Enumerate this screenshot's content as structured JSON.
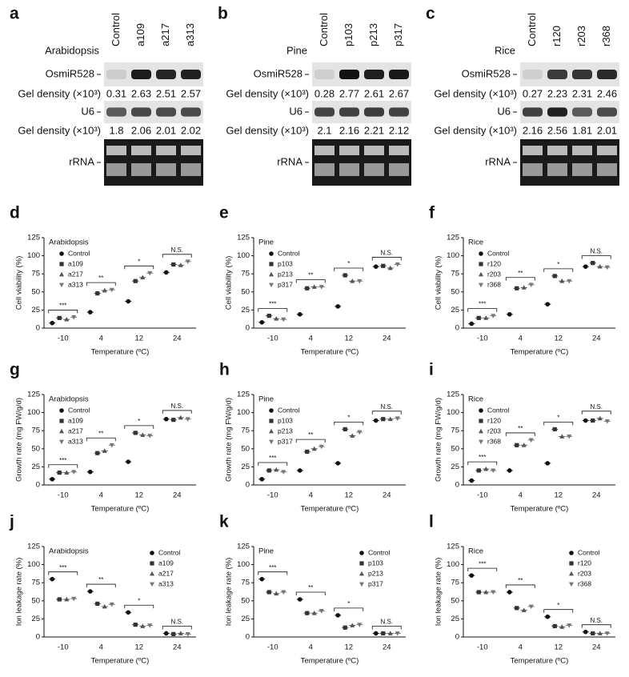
{
  "gels": [
    {
      "letter": "a",
      "species": "Arabidopsis",
      "lanes": [
        "Control",
        "a109",
        "a217",
        "a313"
      ],
      "mirna_label": "OsmiR528",
      "density_label": "Gel density (×10³)",
      "mirna_density": [
        0.31,
        2.63,
        2.51,
        2.57
      ],
      "u6_label": "U6",
      "u6_density": [
        1.8,
        2.06,
        2.01,
        2.02
      ],
      "rrna_label": "rRNA"
    },
    {
      "letter": "b",
      "species": "Pine",
      "lanes": [
        "Control",
        "p103",
        "p213",
        "p317"
      ],
      "mirna_label": "OsmiR528",
      "density_label": "Gel density (×10³)",
      "mirna_density": [
        0.28,
        2.77,
        2.61,
        2.67
      ],
      "u6_label": "U6",
      "u6_density": [
        2.1,
        2.16,
        2.21,
        2.12
      ],
      "rrna_label": "rRNA"
    },
    {
      "letter": "c",
      "species": "Rice",
      "lanes": [
        "Control",
        "r120",
        "r203",
        "r368"
      ],
      "mirna_label": "OsmiR528",
      "density_label": "Gel density (×10³)",
      "mirna_density": [
        0.27,
        2.23,
        2.31,
        2.46
      ],
      "u6_label": "U6",
      "u6_density": [
        2.16,
        2.56,
        1.81,
        2.01
      ],
      "rrna_label": "rRNA"
    }
  ],
  "chart_data": [
    {
      "type": "dot",
      "letter": "d",
      "title": "Arabidopsis",
      "ylabel": "Cell viability (%)",
      "xlabel": "Temperature (ºC)",
      "categories": [
        "-10",
        "4",
        "12",
        "24"
      ],
      "significance": [
        "***",
        "**",
        "*",
        "N.S."
      ],
      "ylim": [
        0,
        125
      ],
      "yticks": [
        0,
        25,
        50,
        75,
        100,
        125
      ],
      "legend": "upper left",
      "series": [
        {
          "name": "Control",
          "color": "#111",
          "marker": "circle",
          "values": [
            7,
            22,
            37,
            77
          ]
        },
        {
          "name": "a109",
          "color": "#333",
          "marker": "square",
          "values": [
            14,
            48,
            65,
            88
          ]
        },
        {
          "name": "a217",
          "color": "#555",
          "marker": "triangle",
          "values": [
            12,
            52,
            70,
            87
          ]
        },
        {
          "name": "a313",
          "color": "#777",
          "marker": "triangle-down",
          "values": [
            15,
            53,
            76,
            92
          ]
        }
      ]
    },
    {
      "type": "dot",
      "letter": "e",
      "title": "Pine",
      "ylabel": "Cell viability (%)",
      "xlabel": "Temperature (ºC)",
      "categories": [
        "-10",
        "4",
        "12",
        "24"
      ],
      "significance": [
        "***",
        "**",
        "*",
        "N.S."
      ],
      "ylim": [
        0,
        125
      ],
      "yticks": [
        0,
        25,
        50,
        75,
        100,
        125
      ],
      "legend": "upper left",
      "series": [
        {
          "name": "Control",
          "color": "#111",
          "marker": "circle",
          "values": [
            8,
            19,
            30,
            85
          ]
        },
        {
          "name": "p103",
          "color": "#333",
          "marker": "square",
          "values": [
            17,
            55,
            73,
            86
          ]
        },
        {
          "name": "p213",
          "color": "#555",
          "marker": "triangle",
          "values": [
            13,
            57,
            65,
            83
          ]
        },
        {
          "name": "p317",
          "color": "#777",
          "marker": "triangle-down",
          "values": [
            12,
            57,
            65,
            88
          ]
        }
      ]
    },
    {
      "type": "dot",
      "letter": "f",
      "title": "Rice",
      "ylabel": "Cell viability (%)",
      "xlabel": "Temperature (ºC)",
      "categories": [
        "-10",
        "4",
        "12",
        "24"
      ],
      "significance": [
        "***",
        "**",
        "*",
        "N.S."
      ],
      "ylim": [
        0,
        125
      ],
      "yticks": [
        0,
        25,
        50,
        75,
        100,
        125
      ],
      "legend": "upper left",
      "series": [
        {
          "name": "Control",
          "color": "#111",
          "marker": "circle",
          "values": [
            6,
            19,
            33,
            85
          ]
        },
        {
          "name": "r120",
          "color": "#333",
          "marker": "square",
          "values": [
            14,
            55,
            72,
            90
          ]
        },
        {
          "name": "r203",
          "color": "#555",
          "marker": "triangle",
          "values": [
            14,
            56,
            65,
            85
          ]
        },
        {
          "name": "r368",
          "color": "#777",
          "marker": "triangle-down",
          "values": [
            17,
            60,
            65,
            84
          ]
        }
      ]
    },
    {
      "type": "dot",
      "letter": "g",
      "title": "Arabidopsis",
      "ylabel": "Growth rate (mg FW/g/d)",
      "xlabel": "Temperature (ºC)",
      "categories": [
        "-10",
        "4",
        "12",
        "24"
      ],
      "significance": [
        "***",
        "**",
        "*",
        "N.S."
      ],
      "ylim": [
        0,
        125
      ],
      "yticks": [
        0,
        25,
        50,
        75,
        100,
        125
      ],
      "legend": "upper left",
      "series": [
        {
          "name": "Control",
          "color": "#111",
          "marker": "circle",
          "values": [
            8,
            18,
            32,
            91
          ]
        },
        {
          "name": "a109",
          "color": "#333",
          "marker": "square",
          "values": [
            17,
            44,
            72,
            90
          ]
        },
        {
          "name": "a217",
          "color": "#555",
          "marker": "triangle",
          "values": [
            17,
            47,
            69,
            93
          ]
        },
        {
          "name": "a313",
          "color": "#777",
          "marker": "triangle-down",
          "values": [
            18,
            55,
            68,
            91
          ]
        }
      ]
    },
    {
      "type": "dot",
      "letter": "h",
      "title": "Pine",
      "ylabel": "Growth rate (mg FW/g/d)",
      "xlabel": "Temperature (ºC)",
      "categories": [
        "-10",
        "4",
        "12",
        "24"
      ],
      "significance": [
        "***",
        "**",
        "*",
        "N.S."
      ],
      "ylim": [
        0,
        125
      ],
      "yticks": [
        0,
        25,
        50,
        75,
        100,
        125
      ],
      "legend": "upper left",
      "series": [
        {
          "name": "Control",
          "color": "#111",
          "marker": "circle",
          "values": [
            8,
            20,
            30,
            89
          ]
        },
        {
          "name": "p103",
          "color": "#333",
          "marker": "square",
          "values": [
            20,
            46,
            77,
            91
          ]
        },
        {
          "name": "p213",
          "color": "#555",
          "marker": "triangle",
          "values": [
            21,
            50,
            68,
            91
          ]
        },
        {
          "name": "p317",
          "color": "#777",
          "marker": "triangle-down",
          "values": [
            18,
            53,
            73,
            92
          ]
        }
      ]
    },
    {
      "type": "dot",
      "letter": "i",
      "title": "Rice",
      "ylabel": "Growth rate (mg FW/g/d)",
      "xlabel": "Temperature (ºC)",
      "categories": [
        "-10",
        "4",
        "12",
        "24"
      ],
      "significance": [
        "***",
        "**",
        "*",
        "N.S."
      ],
      "ylim": [
        0,
        125
      ],
      "yticks": [
        0,
        25,
        50,
        75,
        100,
        125
      ],
      "legend": "upper left",
      "series": [
        {
          "name": "Control",
          "color": "#111",
          "marker": "circle",
          "values": [
            6,
            20,
            30,
            89
          ]
        },
        {
          "name": "r120",
          "color": "#333",
          "marker": "square",
          "values": [
            20,
            55,
            77,
            89
          ]
        },
        {
          "name": "r203",
          "color": "#555",
          "marker": "triangle",
          "values": [
            22,
            55,
            67,
            92
          ]
        },
        {
          "name": "r368",
          "color": "#777",
          "marker": "triangle-down",
          "values": [
            20,
            62,
            67,
            88
          ]
        }
      ]
    },
    {
      "type": "dot",
      "letter": "j",
      "title": "Arabidopsis",
      "ylabel": "Ion leakage rate (%)",
      "xlabel": "Temperature (ºC)",
      "categories": [
        "-10",
        "4",
        "12",
        "24"
      ],
      "significance": [
        "***",
        "**",
        "*",
        "N.S."
      ],
      "ylim": [
        0,
        125
      ],
      "yticks": [
        0,
        25,
        50,
        75,
        100,
        125
      ],
      "legend": "upper right",
      "series": [
        {
          "name": "Control",
          "color": "#111",
          "marker": "circle",
          "values": [
            80,
            63,
            34,
            5
          ]
        },
        {
          "name": "a109",
          "color": "#333",
          "marker": "square",
          "values": [
            52,
            46,
            17,
            4
          ]
        },
        {
          "name": "a217",
          "color": "#555",
          "marker": "triangle",
          "values": [
            52,
            42,
            15,
            5
          ]
        },
        {
          "name": "a313",
          "color": "#777",
          "marker": "triangle-down",
          "values": [
            53,
            45,
            16,
            4
          ]
        }
      ]
    },
    {
      "type": "dot",
      "letter": "k",
      "title": "Pine",
      "ylabel": "Ion leakage rate (%)",
      "xlabel": "Temperature (ºC)",
      "categories": [
        "-10",
        "4",
        "12",
        "24"
      ],
      "significance": [
        "***",
        "**",
        "*",
        "N.S."
      ],
      "ylim": [
        0,
        125
      ],
      "yticks": [
        0,
        25,
        50,
        75,
        100,
        125
      ],
      "legend": "upper right",
      "series": [
        {
          "name": "Control",
          "color": "#111",
          "marker": "circle",
          "values": [
            80,
            52,
            30,
            5
          ]
        },
        {
          "name": "p103",
          "color": "#333",
          "marker": "square",
          "values": [
            62,
            33,
            13,
            5
          ]
        },
        {
          "name": "p213",
          "color": "#555",
          "marker": "triangle",
          "values": [
            60,
            33,
            16,
            5
          ]
        },
        {
          "name": "p317",
          "color": "#777",
          "marker": "triangle-down",
          "values": [
            62,
            36,
            17,
            5
          ]
        }
      ]
    },
    {
      "type": "dot",
      "letter": "l",
      "title": "Rice",
      "ylabel": "Ion leakage rate (%)",
      "xlabel": "Temperature (ºC)",
      "categories": [
        "-10",
        "4",
        "12",
        "24"
      ],
      "significance": [
        "***",
        "**",
        "*",
        "N.S."
      ],
      "ylim": [
        0,
        125
      ],
      "yticks": [
        0,
        25,
        50,
        75,
        100,
        125
      ],
      "legend": "upper right",
      "series": [
        {
          "name": "Control",
          "color": "#111",
          "marker": "circle",
          "values": [
            85,
            62,
            28,
            7
          ]
        },
        {
          "name": "r120",
          "color": "#333",
          "marker": "square",
          "values": [
            62,
            40,
            15,
            5
          ]
        },
        {
          "name": "r203",
          "color": "#555",
          "marker": "triangle",
          "values": [
            62,
            37,
            14,
            5
          ]
        },
        {
          "name": "r368",
          "color": "#777",
          "marker": "triangle-down",
          "values": [
            62,
            42,
            16,
            5
          ]
        }
      ]
    }
  ]
}
